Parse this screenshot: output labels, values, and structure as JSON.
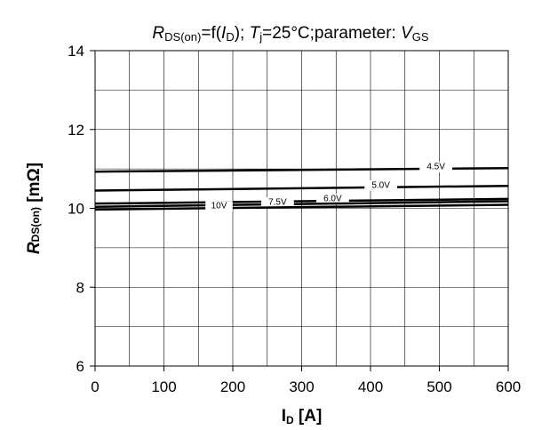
{
  "chart_data": {
    "type": "line",
    "title": {
      "parts": [
        {
          "text": "R",
          "style": "italic"
        },
        {
          "text": "DS(on)",
          "style": "sub"
        },
        {
          "text": "=f(",
          "style": "normal"
        },
        {
          "text": "I",
          "style": "italic"
        },
        {
          "text": "D",
          "style": "sub"
        },
        {
          "text": "); ",
          "style": "normal"
        },
        {
          "text": "T",
          "style": "italic"
        },
        {
          "text": "j",
          "style": "sub"
        },
        {
          "text": "=25°C;parameter: ",
          "style": "normal"
        },
        {
          "text": "V",
          "style": "italic"
        },
        {
          "text": "GS",
          "style": "sub"
        }
      ]
    },
    "xlabel": {
      "main": "I",
      "sub": "D",
      "suffix": " [A]"
    },
    "ylabel": {
      "main": "R",
      "sub": "DS(on)",
      "suffix": " [mΩ]"
    },
    "xlim": [
      0,
      600
    ],
    "ylim": [
      6,
      14
    ],
    "xticks": [
      "0",
      "100",
      "200",
      "300",
      "400",
      "500",
      "600"
    ],
    "yticks": [
      "6",
      "8",
      "10",
      "12",
      "14"
    ],
    "grid": true,
    "series": [
      {
        "name": "4.5V",
        "x": [
          0,
          600
        ],
        "y": [
          10.93,
          11.02
        ],
        "label_x": 495
      },
      {
        "name": "5.0V",
        "x": [
          0,
          600
        ],
        "y": [
          10.45,
          10.57
        ],
        "label_x": 415
      },
      {
        "name": "6.0V",
        "x": [
          0,
          600
        ],
        "y": [
          10.12,
          10.24
        ],
        "label_x": 345
      },
      {
        "name": "7.5V",
        "x": [
          0,
          600
        ],
        "y": [
          10.04,
          10.18
        ],
        "label_x": 265
      },
      {
        "name": "10V",
        "x": [
          0,
          600
        ],
        "y": [
          9.97,
          10.09
        ],
        "label_x": 180
      }
    ]
  }
}
